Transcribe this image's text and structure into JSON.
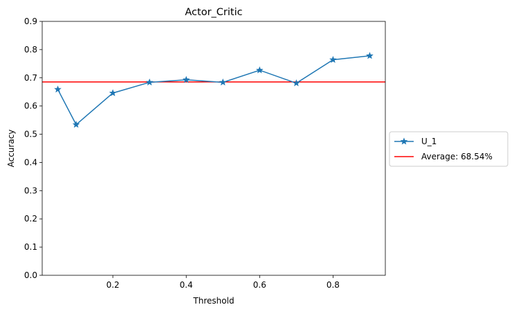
{
  "chart_data": {
    "type": "line",
    "title": "Actor_Critic",
    "xlabel": "Threshold",
    "ylabel": "Accuracy",
    "xlim": [
      0.0075,
      0.9425
    ],
    "ylim": [
      0.0,
      0.9
    ],
    "xticks": [
      0.2,
      0.4,
      0.6,
      0.8
    ],
    "xtick_labels": [
      "0.2",
      "0.4",
      "0.6",
      "0.8"
    ],
    "yticks": [
      0.0,
      0.1,
      0.2,
      0.3,
      0.4,
      0.5,
      0.6,
      0.7,
      0.8,
      0.9
    ],
    "ytick_labels": [
      "0.0",
      "0.1",
      "0.2",
      "0.3",
      "0.4",
      "0.5",
      "0.6",
      "0.7",
      "0.8",
      "0.9"
    ],
    "grid": false,
    "legend_position": "center-right-outside",
    "series": [
      {
        "name": "U_1",
        "color": "#1f77b4",
        "marker": "star",
        "x": [
          0.05,
          0.1,
          0.2,
          0.3,
          0.4,
          0.5,
          0.6,
          0.7,
          0.8,
          0.9
        ],
        "y": [
          0.659,
          0.534,
          0.646,
          0.684,
          0.693,
          0.684,
          0.727,
          0.681,
          0.764,
          0.778
        ]
      }
    ],
    "hlines": [
      {
        "name": "Average: 68.54%",
        "color": "#ff0000",
        "y": 0.6854
      }
    ]
  }
}
